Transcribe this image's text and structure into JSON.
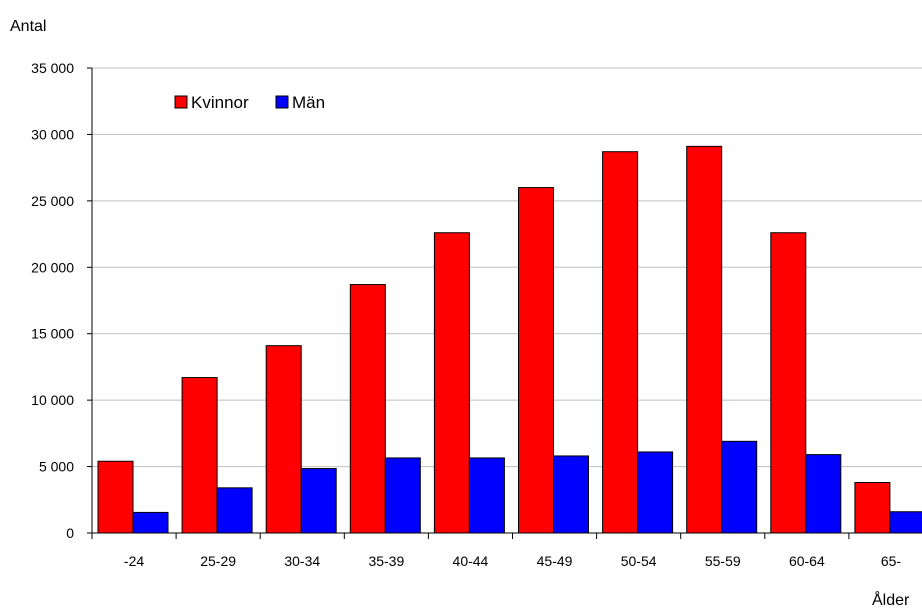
{
  "chart_data": {
    "type": "bar",
    "ylabel": "Antal",
    "xlabel": "Ålder",
    "categories": [
      "-24",
      "25-29",
      "30-34",
      "35-39",
      "40-44",
      "45-49",
      "50-54",
      "55-59",
      "60-64",
      "65-"
    ],
    "series": [
      {
        "name": "Kvinnor",
        "color": "#ff0000",
        "values": [
          5400,
          11700,
          14100,
          18700,
          22600,
          26000,
          28700,
          29100,
          22600,
          3800
        ]
      },
      {
        "name": "Män",
        "color": "#0000ff",
        "values": [
          1550,
          3400,
          4850,
          5650,
          5650,
          5800,
          6100,
          6900,
          5900,
          1600
        ]
      }
    ],
    "ylim": [
      0,
      35000
    ],
    "yticks": [
      0,
      5000,
      10000,
      15000,
      20000,
      25000,
      30000,
      35000
    ],
    "ytick_labels": [
      "0",
      "5 000",
      "10 000",
      "15 000",
      "20 000",
      "25 000",
      "30 000",
      "35 000"
    ],
    "grid": "horizontal",
    "legend_position": "top-left"
  }
}
